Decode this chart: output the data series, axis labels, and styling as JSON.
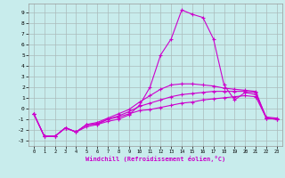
{
  "xlabel": "Windchill (Refroidissement éolien,°C)",
  "background_color": "#c8ecec",
  "grid_color": "#aaccaa",
  "line_color": "#cc00cc",
  "xlim": [
    -0.5,
    23.5
  ],
  "ylim": [
    -3.5,
    9.8
  ],
  "xticks": [
    0,
    1,
    2,
    3,
    4,
    5,
    6,
    7,
    8,
    9,
    10,
    11,
    12,
    13,
    14,
    15,
    16,
    17,
    18,
    19,
    20,
    21,
    22,
    23
  ],
  "yticks": [
    -3,
    -2,
    -1,
    0,
    1,
    2,
    3,
    4,
    5,
    6,
    7,
    8,
    9
  ],
  "series_x": [
    0,
    1,
    2,
    3,
    4,
    5,
    6,
    7,
    8,
    9,
    10,
    11,
    12,
    13,
    14,
    15,
    16,
    17,
    18,
    19,
    20,
    21,
    22,
    23
  ],
  "series": [
    [
      -0.5,
      -2.6,
      -2.6,
      -1.8,
      -2.2,
      -1.7,
      -1.5,
      -1.2,
      -1.0,
      -0.6,
      0.3,
      2.0,
      5.0,
      6.5,
      9.2,
      8.8,
      8.5,
      6.5,
      2.2,
      0.8,
      1.5,
      1.3,
      -0.8,
      -0.9
    ],
    [
      -0.5,
      -2.6,
      -2.6,
      -1.8,
      -2.2,
      -1.5,
      -1.5,
      -1.0,
      -0.8,
      -0.5,
      -0.2,
      -0.1,
      0.1,
      0.3,
      0.5,
      0.6,
      0.8,
      0.9,
      1.0,
      1.1,
      1.2,
      1.1,
      -0.9,
      -1.0
    ],
    [
      -0.5,
      -2.6,
      -2.6,
      -1.8,
      -2.2,
      -1.5,
      -1.4,
      -1.0,
      -0.7,
      -0.3,
      0.2,
      0.5,
      0.8,
      1.1,
      1.3,
      1.4,
      1.5,
      1.6,
      1.6,
      1.6,
      1.6,
      1.5,
      -0.9,
      -1.0
    ],
    [
      -0.5,
      -2.6,
      -2.6,
      -1.8,
      -2.2,
      -1.5,
      -1.3,
      -0.9,
      -0.5,
      -0.1,
      0.6,
      1.2,
      1.8,
      2.2,
      2.3,
      2.3,
      2.2,
      2.1,
      1.9,
      1.8,
      1.7,
      1.6,
      -0.9,
      -1.0
    ]
  ]
}
